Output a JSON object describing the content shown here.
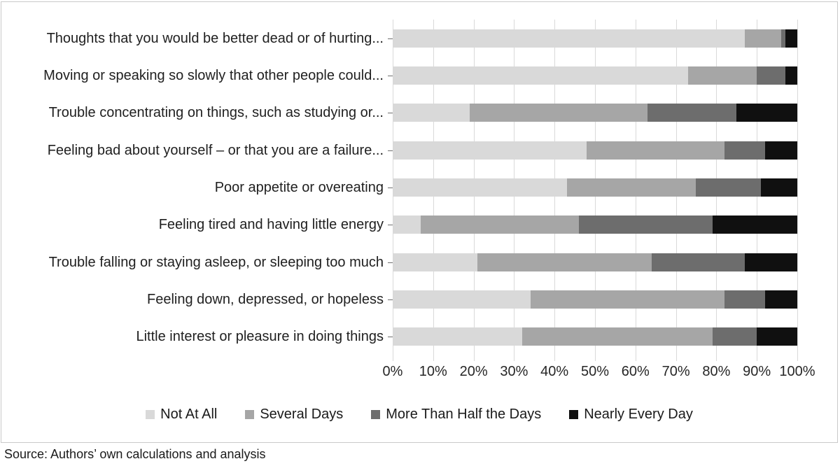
{
  "figure": {
    "source_note": "Source: Authors’ own calculations and analysis"
  },
  "chart_data": {
    "type": "bar",
    "orientation": "horizontal",
    "stacked": true,
    "stacked_total_percent": 100,
    "title": "",
    "xlabel": "",
    "ylabel": "",
    "xlim": [
      0,
      100
    ],
    "x_ticks": [
      "0%",
      "10%",
      "20%",
      "30%",
      "40%",
      "50%",
      "60%",
      "70%",
      "80%",
      "90%",
      "100%"
    ],
    "grid": "vertical",
    "legend_position": "bottom",
    "categories": [
      "Thoughts that you would be better dead or of hurting...",
      "Moving or speaking so slowly that other people could...",
      "Trouble concentrating on things, such as studying or...",
      "Feeling bad about yourself – or that you are a failure...",
      "Poor appetite or overeating",
      "Feeling tired and having little energy",
      "Trouble falling or staying asleep, or sleeping too much",
      "Feeling down, depressed, or hopeless",
      "Little interest or pleasure in doing things"
    ],
    "series": [
      {
        "name": "Not At All",
        "color": "#d9d9d9",
        "values": [
          87,
          73,
          19,
          48,
          43,
          7,
          21,
          34,
          32
        ]
      },
      {
        "name": "Several Days",
        "color": "#a6a6a6",
        "values": [
          9,
          17,
          44,
          34,
          32,
          39,
          43,
          48,
          47
        ]
      },
      {
        "name": "More Than Half the Days",
        "color": "#6d6d6d",
        "values": [
          1,
          7,
          22,
          10,
          16,
          33,
          23,
          10,
          11
        ]
      },
      {
        "name": "Nearly Every Day",
        "color": "#101010",
        "values": [
          3,
          3,
          15,
          8,
          9,
          21,
          13,
          8,
          10
        ]
      }
    ]
  }
}
